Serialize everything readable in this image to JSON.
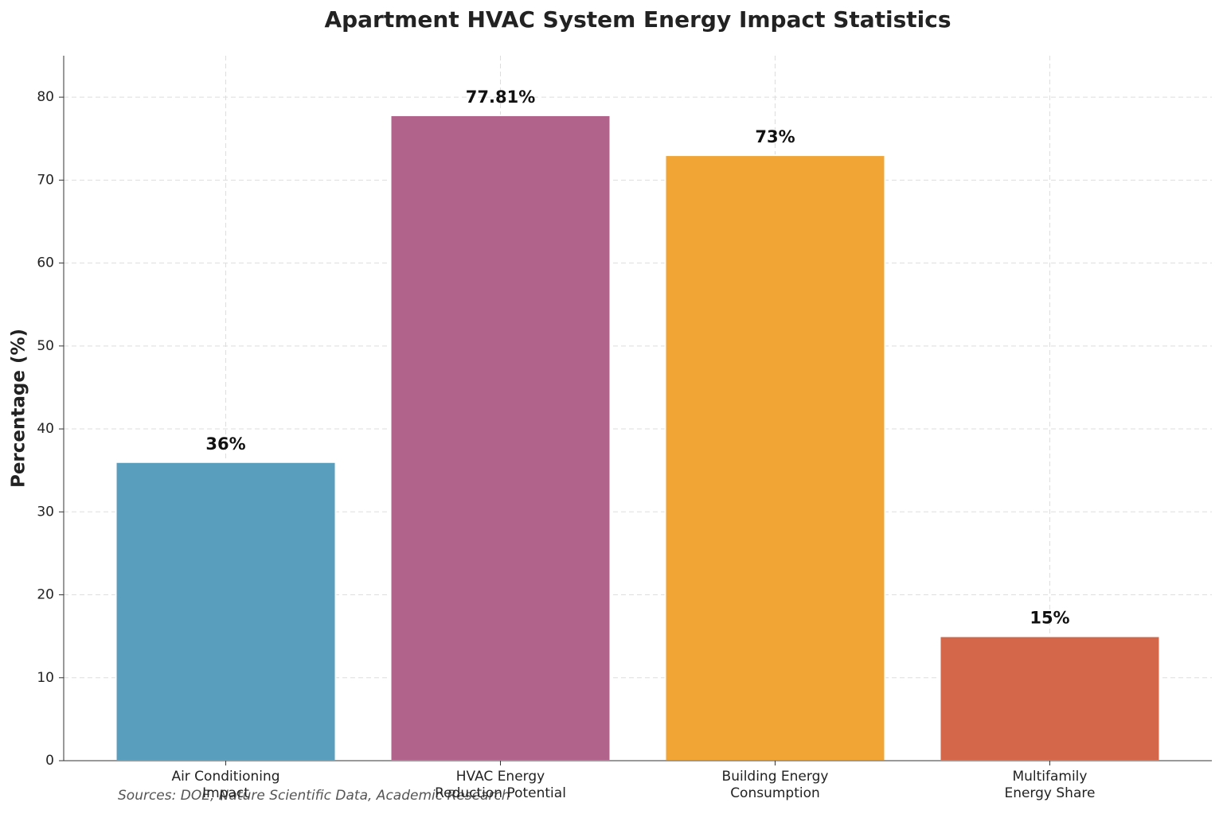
{
  "chart_data": {
    "type": "bar",
    "title": "Apartment HVAC System Energy Impact Statistics",
    "y_label": "Percentage (%)",
    "categories": [
      "Air Conditioning\nImpact",
      "HVAC Energy\nReduction Potential",
      "Building Energy\nConsumption",
      "Multifamily\nEnergy Share"
    ],
    "values": [
      36,
      77.81,
      73,
      15
    ],
    "value_labels": [
      "36%",
      "77.81%",
      "73%",
      "15%"
    ],
    "colors": [
      "#5a9ebd",
      "#b2638c",
      "#f0a535",
      "#d4664a"
    ],
    "ylim": [
      0,
      85
    ],
    "yticks": [
      0,
      10,
      20,
      30,
      40,
      50,
      60,
      70,
      80
    ],
    "grid": true,
    "source": "Sources: DOE, Nature Scientific Data, Academic Research"
  }
}
